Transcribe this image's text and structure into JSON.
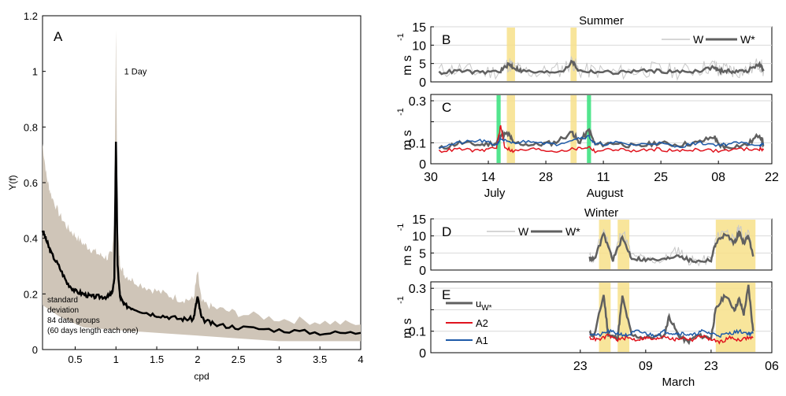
{
  "colors": {
    "band": "#cfc5b8",
    "black": "#000000",
    "W": "#c8c8c8",
    "Wstar": "#606060",
    "A2": "#e0141e",
    "A1": "#1e5aa8",
    "yellow": "#f7e18a",
    "green": "#34e07a",
    "grid": "#d9d9d9"
  },
  "chart_data": [
    {
      "id": "A",
      "type": "line",
      "panel_label": "A",
      "xlabel": "cpd",
      "ylabel": "Y(f)",
      "xlim": [
        0.1,
        4
      ],
      "ylim": [
        0,
        1.2
      ],
      "xticks": [
        0.5,
        1,
        1.5,
        2,
        2.5,
        3,
        3.5,
        4
      ],
      "xtick_labels": [
        "0.5",
        "1",
        "1.5",
        "2",
        "2.5",
        "3",
        "3.5",
        "4"
      ],
      "yticks": [
        0,
        0.2,
        0.4,
        0.6,
        0.8,
        1,
        1.2
      ],
      "ytick_labels": [
        "0",
        "0.2",
        "0.4",
        "0.6",
        "0.8",
        "1",
        "1.2"
      ],
      "annotation": "1 Day",
      "band_text": [
        "standard",
        "deviation",
        "84 data groups",
        "(60 days length each one)"
      ],
      "series": [
        {
          "role": "mean",
          "x": [
            0.1,
            0.15,
            0.2,
            0.3,
            0.4,
            0.5,
            0.6,
            0.7,
            0.8,
            0.9,
            0.95,
            0.98,
            1.0,
            1.02,
            1.05,
            1.1,
            1.2,
            1.4,
            1.6,
            1.8,
            1.95,
            2.0,
            2.05,
            2.2,
            2.5,
            3.0,
            3.5,
            4.0
          ],
          "y": [
            0.43,
            0.39,
            0.35,
            0.3,
            0.24,
            0.21,
            0.2,
            0.19,
            0.19,
            0.19,
            0.2,
            0.25,
            0.75,
            0.3,
            0.19,
            0.16,
            0.15,
            0.13,
            0.12,
            0.11,
            0.11,
            0.19,
            0.11,
            0.09,
            0.08,
            0.07,
            0.06,
            0.06
          ]
        },
        {
          "role": "std_upper",
          "x": [
            0.1,
            0.15,
            0.2,
            0.3,
            0.4,
            0.5,
            0.6,
            0.7,
            0.8,
            0.9,
            0.95,
            0.98,
            1.0,
            1.02,
            1.05,
            1.1,
            1.2,
            1.4,
            1.6,
            1.8,
            1.95,
            2.0,
            2.05,
            2.2,
            2.5,
            3.0,
            3.5,
            4.0
          ],
          "y": [
            0.74,
            0.62,
            0.56,
            0.49,
            0.44,
            0.41,
            0.38,
            0.36,
            0.34,
            0.33,
            0.35,
            0.45,
            1.15,
            0.45,
            0.31,
            0.27,
            0.25,
            0.22,
            0.2,
            0.18,
            0.18,
            0.28,
            0.17,
            0.15,
            0.13,
            0.11,
            0.1,
            0.09
          ]
        },
        {
          "role": "std_lower",
          "x": [
            0.1,
            0.3,
            0.6,
            1.0,
            1.5,
            2.0,
            2.5,
            3.0,
            4.0
          ],
          "y": [
            0.16,
            0.12,
            0.08,
            0.07,
            0.06,
            0.05,
            0.04,
            0.03,
            0.03
          ]
        }
      ]
    },
    {
      "id": "B",
      "type": "line",
      "panel_label": "B",
      "title": "Summer",
      "ylabel": "m s",
      "ylabel_sup": "-1",
      "xlim": [
        30,
        113
      ],
      "ylim": [
        0,
        15
      ],
      "yticks": [
        0,
        5,
        10,
        15
      ],
      "ytick_labels": [
        "0",
        "5",
        "10",
        "15"
      ],
      "legend": [
        "W",
        "W*"
      ],
      "highlights_yellow": [
        [
          48.5,
          50.5
        ],
        [
          64,
          65.5
        ]
      ],
      "series": [
        {
          "name": "W",
          "x": [
            32,
            37,
            42,
            47,
            49,
            50,
            52,
            57,
            62,
            64.5,
            66,
            70,
            75,
            80,
            85,
            90,
            95,
            99,
            100,
            102,
            104,
            107,
            110,
            111
          ],
          "y": [
            3,
            3.5,
            2.5,
            3,
            5,
            4,
            3,
            2.5,
            3.5,
            5.5,
            3,
            3,
            2.5,
            3,
            3.5,
            2.8,
            3.5,
            4.5,
            3,
            3.5,
            3,
            3,
            5,
            3
          ]
        },
        {
          "name": "W*",
          "x": [
            32,
            37,
            42,
            47,
            49,
            50,
            52,
            57,
            62,
            64.5,
            66,
            70,
            75,
            80,
            85,
            90,
            95,
            99,
            100,
            102,
            104,
            107,
            110,
            111
          ],
          "y": [
            2.5,
            3,
            2.5,
            3,
            4.8,
            4,
            3,
            2.5,
            3,
            5.5,
            3,
            2.8,
            2.5,
            3,
            3,
            2.7,
            3,
            4,
            3,
            3,
            2.8,
            3,
            4.8,
            3
          ]
        }
      ]
    },
    {
      "id": "C",
      "type": "line",
      "panel_label": "C",
      "ylabel": "m s",
      "ylabel_sup": "-1",
      "xlim": [
        30,
        113
      ],
      "ylim": [
        0,
        0.33
      ],
      "yticks": [
        0,
        0.1,
        0.2,
        0.3
      ],
      "ytick_labels": [
        "0",
        "0.1",
        "",
        "0.3"
      ],
      "xtick_labels": [
        "30",
        "14",
        "28",
        "11",
        "25",
        "08",
        "22"
      ],
      "xticks": [
        30,
        44,
        58,
        72,
        86,
        100,
        114
      ],
      "month_labels": [
        "July",
        "August"
      ],
      "highlights_yellow": [
        [
          48.5,
          50.5
        ],
        [
          64,
          65.5
        ]
      ],
      "highlights_green": [
        [
          46,
          47
        ],
        [
          68,
          69
        ]
      ],
      "series": [
        {
          "name": "u_W*",
          "x": [
            32,
            37,
            42,
            46,
            47,
            49,
            50,
            55,
            60,
            64.5,
            66,
            68.5,
            70,
            75,
            80,
            85,
            90,
            95,
            99,
            100,
            102,
            107,
            110,
            111
          ],
          "y": [
            0.07,
            0.1,
            0.09,
            0.1,
            0.14,
            0.14,
            0.1,
            0.09,
            0.1,
            0.15,
            0.1,
            0.16,
            0.09,
            0.1,
            0.08,
            0.1,
            0.09,
            0.1,
            0.13,
            0.09,
            0.08,
            0.09,
            0.14,
            0.09
          ]
        },
        {
          "name": "A2",
          "x": [
            32,
            37,
            42,
            46,
            47,
            48,
            50,
            55,
            60,
            65,
            68.5,
            70,
            75,
            80,
            85,
            90,
            95,
            100,
            105,
            110,
            111
          ],
          "y": [
            0.06,
            0.07,
            0.06,
            0.08,
            0.18,
            0.08,
            0.06,
            0.07,
            0.06,
            0.07,
            0.08,
            0.06,
            0.07,
            0.06,
            0.07,
            0.06,
            0.07,
            0.06,
            0.07,
            0.07,
            0.07
          ]
        },
        {
          "name": "A1",
          "x": [
            32,
            37,
            42,
            46,
            47,
            49,
            50,
            55,
            60,
            65,
            68.5,
            70,
            75,
            80,
            85,
            90,
            95,
            100,
            105,
            110,
            111
          ],
          "y": [
            0.08,
            0.1,
            0.11,
            0.09,
            0.12,
            0.1,
            0.1,
            0.11,
            0.09,
            0.12,
            0.13,
            0.09,
            0.1,
            0.09,
            0.1,
            0.08,
            0.1,
            0.09,
            0.1,
            0.09,
            0.09
          ]
        }
      ]
    },
    {
      "id": "D",
      "type": "line",
      "panel_label": "D",
      "title": "Winter",
      "ylabel": "m s",
      "ylabel_sup": "-1",
      "xlim": [
        0,
        73
      ],
      "ylim": [
        0,
        15
      ],
      "yticks": [
        0,
        5,
        10,
        15
      ],
      "ytick_labels": [
        "0",
        "5",
        "10",
        "15"
      ],
      "legend": [
        "W",
        "W*"
      ],
      "highlights_yellow": [
        [
          36,
          38.5
        ],
        [
          40,
          42.5
        ],
        [
          61,
          69.5
        ]
      ],
      "series": [
        {
          "name": "W",
          "x": [
            34,
            35,
            37,
            39,
            41,
            43,
            46,
            50,
            53,
            55,
            57,
            60,
            61,
            63,
            65,
            66,
            67,
            68,
            69
          ],
          "y": [
            4,
            3,
            12,
            3,
            12,
            4,
            3,
            3,
            6,
            3,
            2.5,
            3,
            9,
            12,
            8,
            13,
            9,
            11,
            4
          ]
        },
        {
          "name": "W*",
          "x": [
            34,
            35,
            37,
            39,
            41,
            43,
            46,
            50,
            53,
            55,
            57,
            60,
            61,
            63,
            65,
            66,
            67,
            68,
            69
          ],
          "y": [
            3.5,
            3,
            10.5,
            3,
            9.5,
            3.5,
            3,
            3,
            4.5,
            3,
            2.5,
            3,
            8,
            10.5,
            8,
            11,
            8,
            10,
            4
          ]
        }
      ]
    },
    {
      "id": "E",
      "type": "line",
      "panel_label": "E",
      "ylabel": "m s",
      "ylabel_sup": "-1",
      "xlim": [
        0,
        73
      ],
      "ylim": [
        0,
        0.33
      ],
      "yticks": [
        0,
        0.1,
        0.2,
        0.3
      ],
      "ytick_labels": [
        "0",
        "0.1",
        "",
        "0.3"
      ],
      "xtick_labels": [
        "23",
        "09",
        "23",
        "06"
      ],
      "xticks": [
        32,
        46,
        60,
        73
      ],
      "month_labels": [
        "March"
      ],
      "highlights_yellow": [
        [
          36,
          38.5
        ],
        [
          40,
          42.5
        ],
        [
          61,
          69.5
        ]
      ],
      "legend": [
        "u_W*",
        "A2",
        "A1"
      ],
      "series": [
        {
          "name": "u_W*",
          "x": [
            34,
            35,
            37,
            38,
            40,
            41,
            43,
            46,
            50,
            51,
            53,
            55,
            57,
            60,
            61,
            63,
            65,
            66,
            67,
            68,
            69
          ],
          "y": [
            0.09,
            0.08,
            0.27,
            0.08,
            0.07,
            0.26,
            0.08,
            0.07,
            0.08,
            0.17,
            0.08,
            0.05,
            0.08,
            0.07,
            0.2,
            0.27,
            0.2,
            0.25,
            0.18,
            0.31,
            0.1
          ]
        },
        {
          "name": "A2",
          "x": [
            34,
            36,
            38,
            40,
            42,
            44,
            46,
            48,
            50,
            52,
            54,
            56,
            58,
            60,
            62,
            64,
            66,
            68,
            69
          ],
          "y": [
            0.07,
            0.06,
            0.08,
            0.06,
            0.07,
            0.06,
            0.07,
            0.06,
            0.08,
            0.06,
            0.07,
            0.06,
            0.08,
            0.06,
            0.05,
            0.07,
            0.06,
            0.07,
            0.07
          ]
        },
        {
          "name": "A1",
          "x": [
            34,
            36,
            38,
            40,
            42,
            44,
            46,
            48,
            50,
            52,
            54,
            56,
            58,
            60,
            62,
            64,
            66,
            68,
            69
          ],
          "y": [
            0.09,
            0.08,
            0.1,
            0.09,
            0.08,
            0.1,
            0.09,
            0.08,
            0.1,
            0.09,
            0.09,
            0.08,
            0.1,
            0.09,
            0.08,
            0.09,
            0.1,
            0.09,
            0.09
          ]
        }
      ]
    }
  ]
}
